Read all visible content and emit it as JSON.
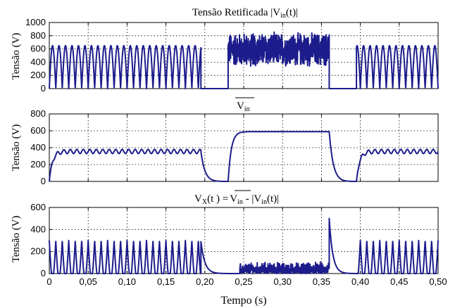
{
  "chart_data": [
    {
      "type": "line",
      "title": "Tensão Retificada |Vin(t)|",
      "ylabel": "Tensão (V)",
      "ylim": [
        0,
        1000
      ],
      "yticks": [
        0,
        200,
        400,
        600,
        800,
        1000
      ],
      "xlim": [
        0,
        0.5
      ],
      "grid": true,
      "series": [
        {
          "segments": [
            {
              "x_range": [
                0.0,
                0.195
              ],
              "kind": "rectified",
              "min": 0,
              "max": 650
            },
            {
              "x_range": [
                0.195,
                0.23
              ],
              "kind": "constant",
              "value": 0
            },
            {
              "x_range": [
                0.23,
                0.36
              ],
              "kind": "noisy",
              "min": 330,
              "max": 880,
              "center": 590
            },
            {
              "x_range": [
                0.36,
                0.395
              ],
              "kind": "constant",
              "value": 0
            },
            {
              "x_range": [
                0.395,
                0.5
              ],
              "kind": "rectified",
              "min": 0,
              "max": 650
            }
          ]
        }
      ]
    },
    {
      "type": "line",
      "title": "Vin",
      "ylabel": "Tensão (V)",
      "ylim": [
        0,
        800
      ],
      "yticks": [
        0,
        200,
        400,
        600,
        800
      ],
      "xlim": [
        0,
        0.5
      ],
      "grid": true,
      "series": [
        {
          "segments": [
            {
              "x_range": [
                0.0,
                0.195
              ],
              "kind": "average",
              "mean": 355,
              "ripple": 25,
              "rise_from": 0
            },
            {
              "x_range": [
                0.195,
                0.23
              ],
              "kind": "decay",
              "to": 0
            },
            {
              "x_range": [
                0.23,
                0.36
              ],
              "kind": "rise",
              "to": 590
            },
            {
              "x_range": [
                0.36,
                0.395
              ],
              "kind": "decay",
              "to": 0
            },
            {
              "x_range": [
                0.395,
                0.5
              ],
              "kind": "average",
              "mean": 355,
              "ripple": 25,
              "rise_from": 0
            }
          ]
        }
      ]
    },
    {
      "type": "line",
      "title": "Vx(t) = Vin - |Vin(t)|",
      "xlabel": "Tempo (s)",
      "ylabel": "Tensão (V)",
      "ylim": [
        0,
        600
      ],
      "yticks": [
        0,
        200,
        400,
        600
      ],
      "xlim": [
        0,
        0.5
      ],
      "xticks": [
        "0",
        "0,05",
        "0,10",
        "0,15",
        "0,20",
        "0,25",
        "0,30",
        "0,35",
        "0,40",
        "0,45",
        "0,50"
      ],
      "grid": true,
      "series": [
        {
          "segments": [
            {
              "x_range": [
                0.0,
                0.195
              ],
              "kind": "pulses",
              "min": 0,
              "max": 300
            },
            {
              "x_range": [
                0.195,
                0.23
              ],
              "kind": "decay_from",
              "from": 290
            },
            {
              "x_range": [
                0.23,
                0.245
              ],
              "kind": "constant",
              "value": 0
            },
            {
              "x_range": [
                0.245,
                0.36
              ],
              "kind": "noise",
              "min": 0,
              "max": 110
            },
            {
              "x_range": [
                0.36,
                0.395
              ],
              "kind": "spike_decay",
              "peak": 500
            },
            {
              "x_range": [
                0.395,
                0.5
              ],
              "kind": "pulses",
              "min": 0,
              "max": 300
            }
          ]
        }
      ]
    }
  ],
  "titles": {
    "p1_main": "Tensão Retificada |V",
    "p1_sub": "in",
    "p1_tail": "(t)|",
    "p2_main": "V",
    "p2_sub": "in",
    "p3_a": "V",
    "p3_a_sub": "X",
    "p3_b": "(t ) =",
    "p3_c": "V",
    "p3_c_sub": "in",
    "p3_d": " - |V",
    "p3_d_sub": "in",
    "p3_e": "(t)|"
  },
  "ylabel": "Tensão (V)",
  "xlabel": "Tempo (s)",
  "colors": {
    "signal": "#1c1c8c"
  }
}
